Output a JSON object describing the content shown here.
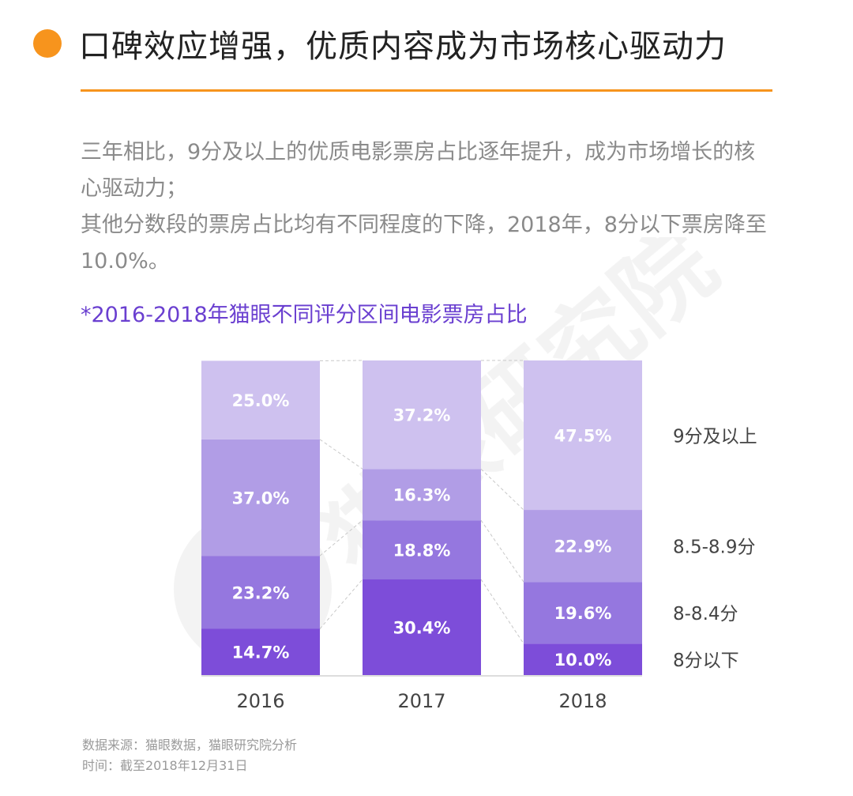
{
  "header": {
    "title": "口碑效应增强，优质内容成为市场核心驱动力"
  },
  "description": {
    "line1": "三年相比，9分及以上的优质电影票房占比逐年提升，成为市场增长的核心驱动力；",
    "line2": "其他分数段的票房占比均有不同程度的下降，2018年，8分以下票房降至10.0%。"
  },
  "subtitle": "*2016-2018年猫眼不同评分区间电影票房占比",
  "watermark": {
    "text": "猫眼研究院"
  },
  "colors": {
    "accent": "#f7941d",
    "subtitle": "#6a3fd0",
    "seg_9_plus": "#cec1ef",
    "seg_85_89": "#b19de6",
    "seg_8_84": "#9577df",
    "seg_below_8": "#7d4dd9"
  },
  "chart_data": {
    "type": "bar",
    "stacked": true,
    "percent": true,
    "categories": [
      "2016",
      "2017",
      "2018"
    ],
    "series": [
      {
        "name": "8分以下",
        "values": [
          14.7,
          30.4,
          10.0
        ],
        "labels": [
          "14.7%",
          "30.4%",
          "10.0%"
        ]
      },
      {
        "name": "8-8.4分",
        "values": [
          23.2,
          18.8,
          19.6
        ],
        "labels": [
          "23.2%",
          "18.8%",
          "19.6%"
        ]
      },
      {
        "name": "8.5-8.9分",
        "values": [
          37.0,
          16.3,
          22.9
        ],
        "labels": [
          "37.0%",
          "16.3%",
          "22.9%"
        ]
      },
      {
        "name": "9分及以上",
        "values": [
          25.0,
          37.2,
          47.5
        ],
        "labels": [
          "25.0%",
          "37.2%",
          "47.5%"
        ]
      }
    ],
    "legend": [
      "9分及以上",
      "8.5-8.9分",
      "8-8.4分",
      "8分以下"
    ],
    "ylim": [
      0,
      100
    ],
    "title": "*2016-2018年猫眼不同评分区间电影票房占比"
  },
  "footer": {
    "source": "数据来源：猫眼数据，猫眼研究院分析",
    "time": "时间：截至2018年12月31日"
  }
}
